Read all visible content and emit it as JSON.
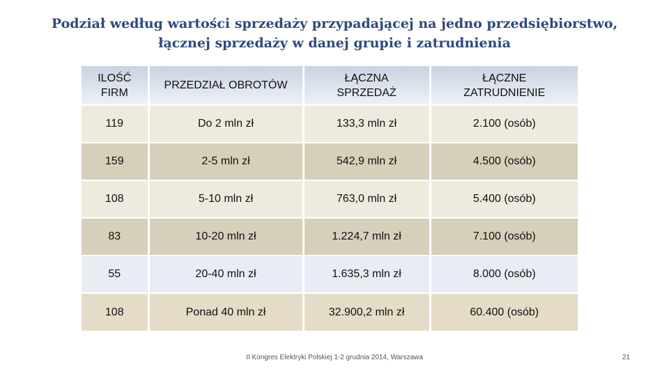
{
  "title": {
    "line1": "Podział według wartości sprzedaży przypadającej na jedno przedsiębiorstwo,",
    "line2": "łącznej sprzedaży w danej grupie i zatrudnienia"
  },
  "table": {
    "headers": [
      [
        "ILOŚĆ",
        "FIRM"
      ],
      [
        "PRZEDZIAŁ OBROTÓW"
      ],
      [
        "ŁĄCZNA",
        "SPRZEDAŻ"
      ],
      [
        "ŁĄCZNE",
        "ZATRUDNIENIE"
      ]
    ],
    "rows": [
      [
        "119",
        "Do 2 mln zł",
        "133,3 mln zł",
        "2.100 (osób)"
      ],
      [
        "159",
        "2-5 mln zł",
        "542,9 mln zł",
        "4.500 (osób)"
      ],
      [
        "108",
        "5-10  mln zł",
        "763,0 mln zł",
        "5.400 (osób)"
      ],
      [
        "83",
        "10-20  mln zł",
        "1.224,7 mln zł",
        "7.100 (osób)"
      ],
      [
        "55",
        "20-40  mln zł",
        "1.635,3 mln zł",
        "8.000 (osób)"
      ],
      [
        "108",
        "Ponad 40 mln zł",
        "32.900,2 mln zł",
        "60.400 (osób)"
      ]
    ]
  },
  "footer": {
    "text": "II Kongres Elektryki Polskiej 1-2 grudnia 2014, Warszawa",
    "page_number": "21"
  },
  "colors": {
    "title": "#2e4a7d",
    "header_bg": "#d6dde8",
    "row_light": "#eeeade",
    "row_dark": "#d6cfba",
    "row_blue": "#e8edf4"
  }
}
